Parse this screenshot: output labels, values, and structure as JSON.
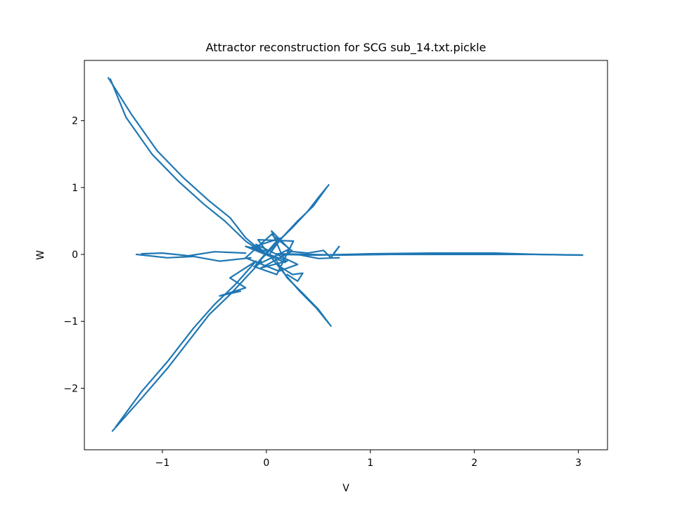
{
  "chart_data": {
    "type": "line",
    "title": "Attractor reconstruction for SCG sub_14.txt.pickle",
    "xlabel": "V",
    "ylabel": "W",
    "xlim": [
      -1.75,
      3.28
    ],
    "ylim": [
      -2.92,
      2.9
    ],
    "xticks": [
      -1,
      0,
      1,
      2,
      3
    ],
    "yticks": [
      -2,
      -1,
      0,
      1,
      2
    ],
    "xtick_labels": [
      "−1",
      "0",
      "1",
      "2",
      "3"
    ],
    "ytick_labels": [
      "−2",
      "−1",
      "0",
      "1",
      "2"
    ],
    "grid": false,
    "legend": "none",
    "line_color": "#1f77b4",
    "series": [
      {
        "name": "",
        "segments": [
          {
            "x": [
              -0.05,
              -0.2,
              -0.35,
              -0.55,
              -0.8,
              -1.05,
              -1.3,
              -1.52
            ],
            "y": [
              0.05,
              0.25,
              0.55,
              0.8,
              1.15,
              1.55,
              2.1,
              2.64
            ]
          },
          {
            "x": [
              -0.03,
              -0.2,
              -0.4,
              -0.6,
              -0.85,
              -1.1,
              -1.35,
              -1.5
            ],
            "y": [
              0.02,
              0.2,
              0.5,
              0.75,
              1.1,
              1.5,
              2.05,
              2.62
            ]
          },
          {
            "x": [
              0.05,
              0.15,
              0.25,
              0.4,
              0.5,
              0.6
            ],
            "y": [
              0.05,
              0.25,
              0.4,
              0.65,
              0.85,
              1.04
            ]
          },
          {
            "x": [
              0.03,
              0.12,
              0.3,
              0.45,
              0.58
            ],
            "y": [
              0.0,
              0.2,
              0.5,
              0.72,
              1.0
            ]
          },
          {
            "x": [
              0.1,
              0.2,
              0.35,
              0.5,
              0.62
            ],
            "y": [
              -0.1,
              -0.35,
              -0.58,
              -0.82,
              -1.07
            ]
          },
          {
            "x": [
              0.05,
              0.18,
              0.32,
              0.48,
              0.6
            ],
            "y": [
              -0.05,
              -0.3,
              -0.55,
              -0.8,
              -1.03
            ]
          },
          {
            "x": [
              -0.05,
              -0.2,
              -0.35,
              -0.55,
              -0.75,
              -0.95,
              -1.2,
              -1.48
            ],
            "y": [
              -0.1,
              -0.35,
              -0.6,
              -0.9,
              -1.3,
              -1.7,
              -2.15,
              -2.64
            ]
          },
          {
            "x": [
              -0.1,
              -0.3,
              -0.5,
              -0.7,
              -0.95,
              -1.2,
              -1.45
            ],
            "y": [
              -0.1,
              -0.45,
              -0.75,
              -1.1,
              -1.6,
              -2.05,
              -2.58
            ]
          },
          {
            "x": [
              -0.15,
              -0.45,
              -0.7,
              -0.95,
              -1.25
            ],
            "y": [
              -0.05,
              -0.1,
              -0.03,
              -0.05,
              0.0
            ]
          },
          {
            "x": [
              -0.2,
              -0.5,
              -0.75,
              -1.0,
              -1.2
            ],
            "y": [
              0.02,
              0.04,
              -0.02,
              0.02,
              0.01
            ]
          },
          {
            "x": [
              0.1,
              0.5,
              1.0,
              1.6,
              2.2,
              2.6,
              3.04
            ],
            "y": [
              0.0,
              -0.01,
              0.01,
              0.02,
              0.02,
              0.0,
              -0.01
            ]
          },
          {
            "x": [
              0.1,
              0.4,
              0.7,
              1.2,
              2.2,
              2.6,
              3.04
            ],
            "y": [
              0.01,
              0.0,
              -0.01,
              0.0,
              0.0,
              0.0,
              -0.01
            ]
          },
          {
            "x": [
              0.0,
              0.1,
              -0.1,
              0.15,
              -0.15,
              0.2,
              -0.05,
              0.25,
              0.05,
              -0.2,
              0.12,
              0.3,
              -0.1,
              0.0
            ],
            "y": [
              0.0,
              0.2,
              -0.15,
              0.25,
              0.1,
              -0.1,
              -0.2,
              0.05,
              0.3,
              -0.05,
              -0.25,
              -0.15,
              0.15,
              0.0
            ]
          },
          {
            "x": [
              0.0,
              -0.2,
              0.18,
              0.05,
              0.22,
              -0.12,
              0.1,
              0.26,
              -0.08,
              0.0
            ],
            "y": [
              0.05,
              0.12,
              -0.12,
              0.35,
              0.08,
              -0.18,
              -0.3,
              0.2,
              0.22,
              0.05
            ]
          },
          {
            "x": [
              -0.4,
              -0.25,
              -0.45,
              -0.2,
              -0.35,
              -0.1
            ],
            "y": [
              -0.6,
              -0.55,
              -0.62,
              -0.5,
              -0.35,
              -0.1
            ]
          },
          {
            "x": [
              0.15,
              0.25,
              0.35,
              0.3,
              0.2
            ],
            "y": [
              -0.2,
              -0.3,
              -0.28,
              -0.4,
              -0.3
            ]
          },
          {
            "x": [
              0.2,
              0.4,
              0.55,
              0.62,
              0.7,
              0.65
            ],
            "y": [
              0.05,
              0.02,
              0.06,
              -0.05,
              0.12,
              0.02
            ]
          },
          {
            "x": [
              0.3,
              0.5,
              0.7
            ],
            "y": [
              0.0,
              -0.06,
              -0.05
            ]
          }
        ]
      }
    ]
  }
}
